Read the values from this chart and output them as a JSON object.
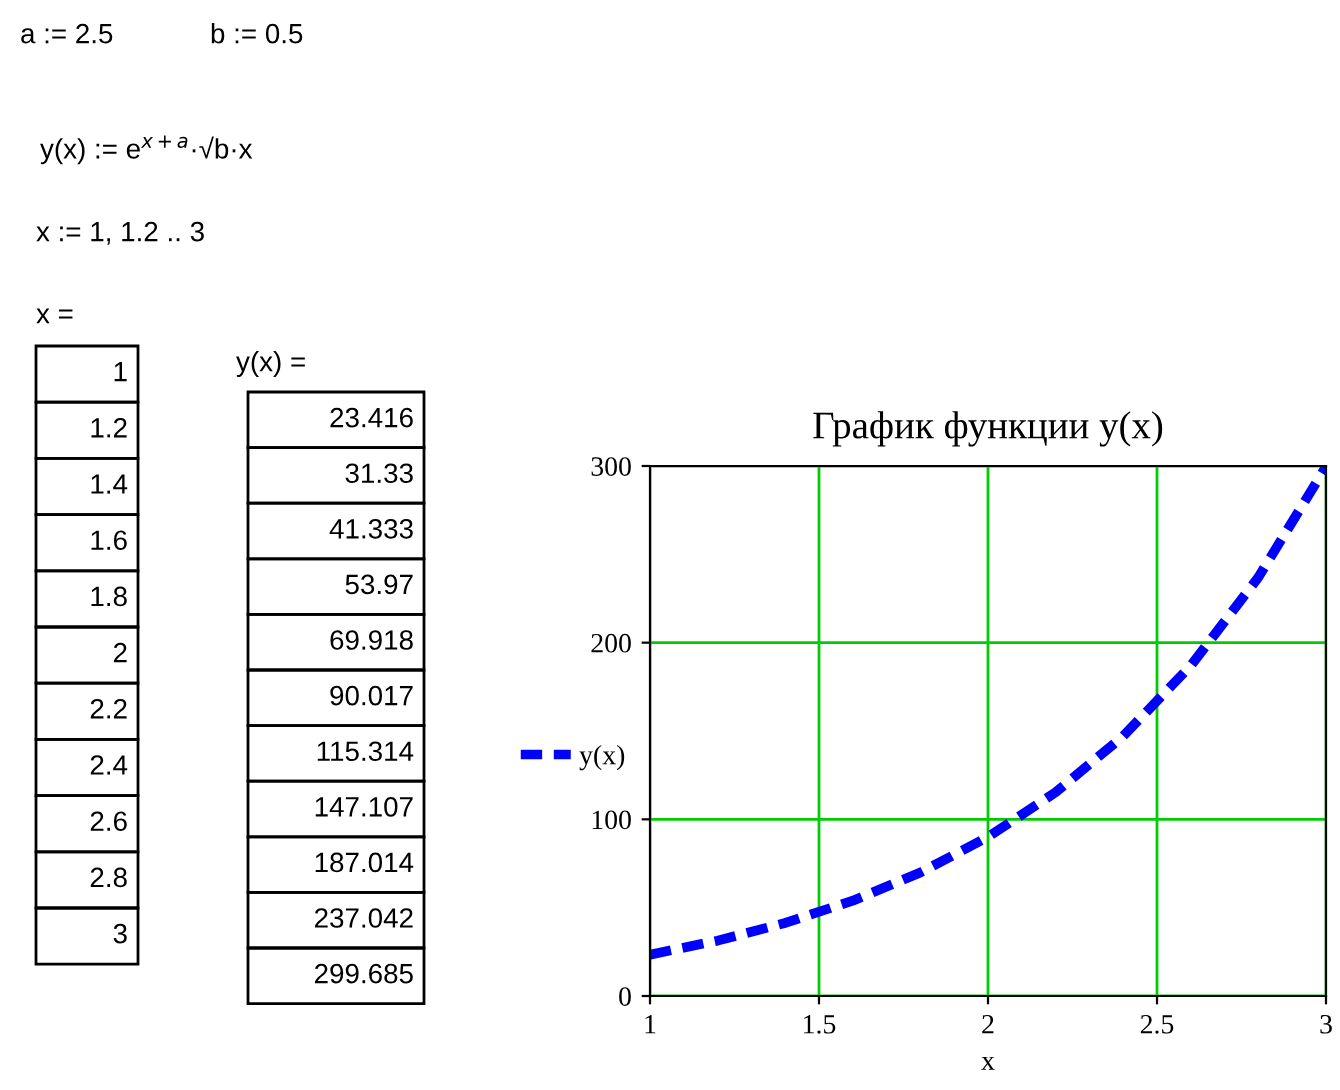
{
  "chart_data": {
    "type": "line",
    "title": "График функции y(x)",
    "xlabel": "x",
    "x": [
      1,
      1.2,
      1.4,
      1.6,
      1.8,
      2,
      2.2,
      2.4,
      2.6,
      2.8,
      3
    ],
    "series": [
      {
        "name": "y(x)",
        "color": "#0000ff",
        "values": [
          23.416,
          31.33,
          41.333,
          53.97,
          69.918,
          90.017,
          115.314,
          147.107,
          187.014,
          237.042,
          299.685
        ]
      }
    ],
    "xlim": [
      1,
      3
    ],
    "ylim": [
      0,
      300
    ],
    "xticks": [
      1,
      1.5,
      2,
      2.5,
      3
    ],
    "yticks": [
      0,
      100,
      200,
      300
    ],
    "grid": true,
    "legend": "left",
    "line_style": "dashed",
    "marker": "none",
    "annotations": [
      "a := 2.5",
      "b := 0.5",
      "y(x) := e$^{x+a}$·√b·x",
      "x := 1, 1.2 .. 3",
      "x =",
      "y(x) =",
      "1",
      "1.2",
      "1.4",
      "1.6",
      "1.8",
      "2",
      "2.2",
      "2.4",
      "2.6",
      "2.8",
      "3",
      "23.416",
      "31.33",
      "41.333",
      "53.97",
      "69.918",
      "90.017",
      "115.314",
      "147.107",
      "187.014",
      "237.042",
      "299.685"
    ]
  }
}
